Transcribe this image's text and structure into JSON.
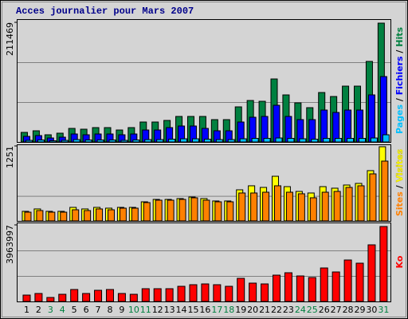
{
  "chart_data": [
    {
      "type": "bar",
      "title": "Acces journalier pour Mars 2007",
      "ylim": [
        0,
        211469
      ],
      "yticks": [
        211469
      ],
      "series": [
        {
          "name": "Pages",
          "color": "#00c0ff",
          "values": [
            2800,
            3500,
            2100,
            2800,
            4200,
            3500,
            3500,
            3500,
            2800,
            3500,
            4200,
            4200,
            4900,
            5600,
            5600,
            4900,
            4200,
            4200,
            5600,
            6300,
            6300,
            7000,
            6300,
            5600,
            4900,
            6300,
            6300,
            6300,
            6300,
            7000,
            12690
          ]
        },
        {
          "name": "Fichiers",
          "color": "#0000ff",
          "values": [
            9870,
            11280,
            7050,
            8460,
            14100,
            12690,
            14100,
            14100,
            12690,
            14100,
            21150,
            21150,
            25380,
            28200,
            28200,
            23970,
            19740,
            19740,
            35250,
            43710,
            45120,
            64860,
            45120,
            39480,
            39480,
            56400,
            52170,
            56400,
            56400,
            83190,
            115620
          ]
        },
        {
          "name": "Hits",
          "color": "#008040",
          "values": [
            16918,
            19737,
            12688,
            15508,
            23967,
            22557,
            25376,
            25376,
            21147,
            25376,
            35245,
            35245,
            38065,
            45113,
            45113,
            45113,
            39475,
            39475,
            62031,
            73309,
            71899,
            111374,
            83178,
            69080,
            60621,
            87407,
            80358,
            98686,
            98686,
            142389,
            210060
          ]
        }
      ]
    },
    {
      "type": "bar",
      "ylim": [
        0,
        1251
      ],
      "yticks": [
        1251
      ],
      "series": [
        {
          "name": "Sites",
          "color": "#ff8000",
          "values": [
            146,
            173,
            146,
            146,
            186,
            173,
            200,
            186,
            213,
            213,
            306,
            346,
            346,
            359,
            386,
            346,
            319,
            319,
            466,
            466,
            479,
            586,
            479,
            453,
            386,
            479,
            492,
            559,
            586,
            785,
            998
          ]
        },
        {
          "name": "Visites",
          "color": "#ffff00",
          "values": [
            160,
            200,
            160,
            160,
            226,
            200,
            226,
            213,
            226,
            226,
            319,
            359,
            359,
            373,
            399,
            373,
            333,
            333,
            519,
            586,
            559,
            745,
            572,
            492,
            466,
            572,
            546,
            599,
            626,
            839,
            1238
          ]
        }
      ]
    },
    {
      "type": "bar",
      "ylim": [
        0,
        3963997
      ],
      "yticks": [
        3963997
      ],
      "categories": [
        1,
        2,
        3,
        4,
        5,
        6,
        7,
        8,
        9,
        10,
        11,
        12,
        13,
        14,
        15,
        16,
        17,
        18,
        19,
        20,
        21,
        22,
        23,
        24,
        25,
        26,
        27,
        28,
        29,
        30,
        31
      ],
      "weekend_days": [
        3,
        4,
        10,
        11,
        17,
        18,
        24,
        25,
        31
      ],
      "weekend_color": "#008040",
      "series": [
        {
          "name": "Ko",
          "color": "#ff0000",
          "values": [
            330336,
            412920,
            206460,
            371628,
            619380,
            412920,
            578088,
            619380,
            412920,
            371628,
            660672,
            660672,
            660672,
            784548,
            867132,
            908424,
            867132,
            784548,
            1197468,
            949716,
            908424,
            1362636,
            1486512,
            1321344,
            1238760,
            1734264,
            1527804,
            2147184,
            1981968,
            2931732,
            3881448
          ]
        }
      ]
    }
  ]
}
